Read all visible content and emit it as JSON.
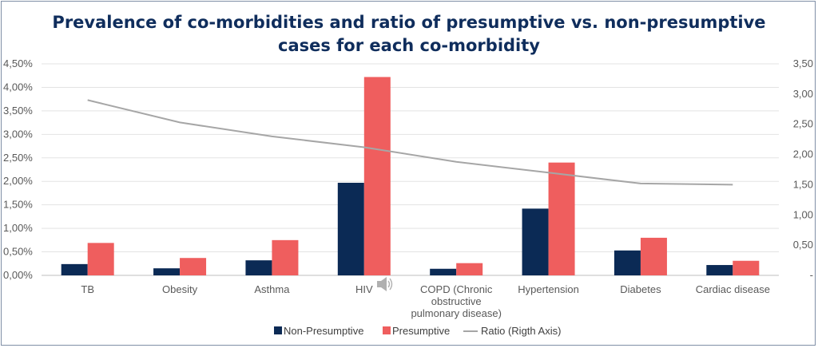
{
  "chart_data": {
    "type": "bar",
    "title_lines": [
      "Prevalence of co-morbidities and ratio of presumptive vs. non-presumptive",
      "cases for each co-morbidity"
    ],
    "categories": [
      [
        "TB"
      ],
      [
        "Obesity"
      ],
      [
        "Asthma"
      ],
      [
        "HIV"
      ],
      [
        "COPD (Chronic",
        "obstructive",
        "pulmonary disease)"
      ],
      [
        "Hypertension"
      ],
      [
        "Diabetes"
      ],
      [
        "Cardiac disease"
      ]
    ],
    "series": [
      {
        "name": "Non-Presumptive",
        "type": "bar",
        "axis": "left",
        "color": "#0b2a55",
        "values": [
          0.0024,
          0.0015,
          0.0032,
          0.0197,
          0.0014,
          0.0142,
          0.0053,
          0.0022
        ]
      },
      {
        "name": "Presumptive",
        "type": "bar",
        "axis": "left",
        "color": "#ef5e5e",
        "values": [
          0.0069,
          0.0037,
          0.0075,
          0.0422,
          0.0026,
          0.024,
          0.008,
          0.0031
        ]
      },
      {
        "name": "Ratio (Rigth Axis)",
        "type": "line",
        "axis": "right",
        "color": "#a6a6a6",
        "values": [
          2.9,
          2.53,
          2.3,
          2.12,
          1.88,
          1.7,
          1.52,
          1.5
        ]
      }
    ],
    "y_left": {
      "min": 0,
      "max": 0.045,
      "ticks": [
        "0,00%",
        "0,50%",
        "1,00%",
        "1,50%",
        "2,00%",
        "2,50%",
        "3,00%",
        "3,50%",
        "4,00%",
        "4,50%"
      ]
    },
    "y_right": {
      "min": 0,
      "max": 3.5,
      "ticks": [
        "-",
        "0,50",
        "1,00",
        "1,50",
        "2,00",
        "2,50",
        "3,00",
        "3,50"
      ]
    },
    "grid": true,
    "legend_position": "bottom"
  },
  "overlay": {
    "speaker_icon": "speaker-icon"
  }
}
